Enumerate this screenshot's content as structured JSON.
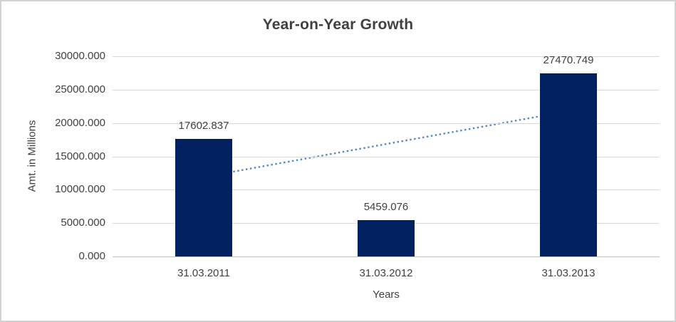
{
  "window": {
    "background": "#ffffff",
    "border_color": "#d2d2d2"
  },
  "chart_data": {
    "type": "bar",
    "title": "Year-on-Year Growth",
    "xlabel": "Years",
    "ylabel": "Amt. in Millions",
    "categories": [
      "31.03.2011",
      "31.03.2012",
      "31.03.2013"
    ],
    "values": [
      17602.837,
      5459.076,
      27470.749
    ],
    "data_labels": [
      "17602.837",
      "5459.076",
      "27470.749"
    ],
    "ylim": [
      0,
      30000
    ],
    "yticks": [
      {
        "value": 0,
        "label": "0.000"
      },
      {
        "value": 5000,
        "label": "5000.000"
      },
      {
        "value": 10000,
        "label": "10000.000"
      },
      {
        "value": 15000,
        "label": "15000.000"
      },
      {
        "value": 20000,
        "label": "20000.000"
      },
      {
        "value": 25000,
        "label": "25000.000"
      },
      {
        "value": 30000,
        "label": "30000.000"
      }
    ],
    "grid": "horizontal",
    "legend": "none",
    "trendline": {
      "type": "linear",
      "style": "dotted",
      "endpoint_values": [
        11910.3,
        21778.2
      ],
      "color": "#4f86c6"
    },
    "colors": {
      "bar": "#002060",
      "gridline": "#d9d9d9",
      "axis_line": "#bfbfbf",
      "text": "#404040"
    }
  }
}
